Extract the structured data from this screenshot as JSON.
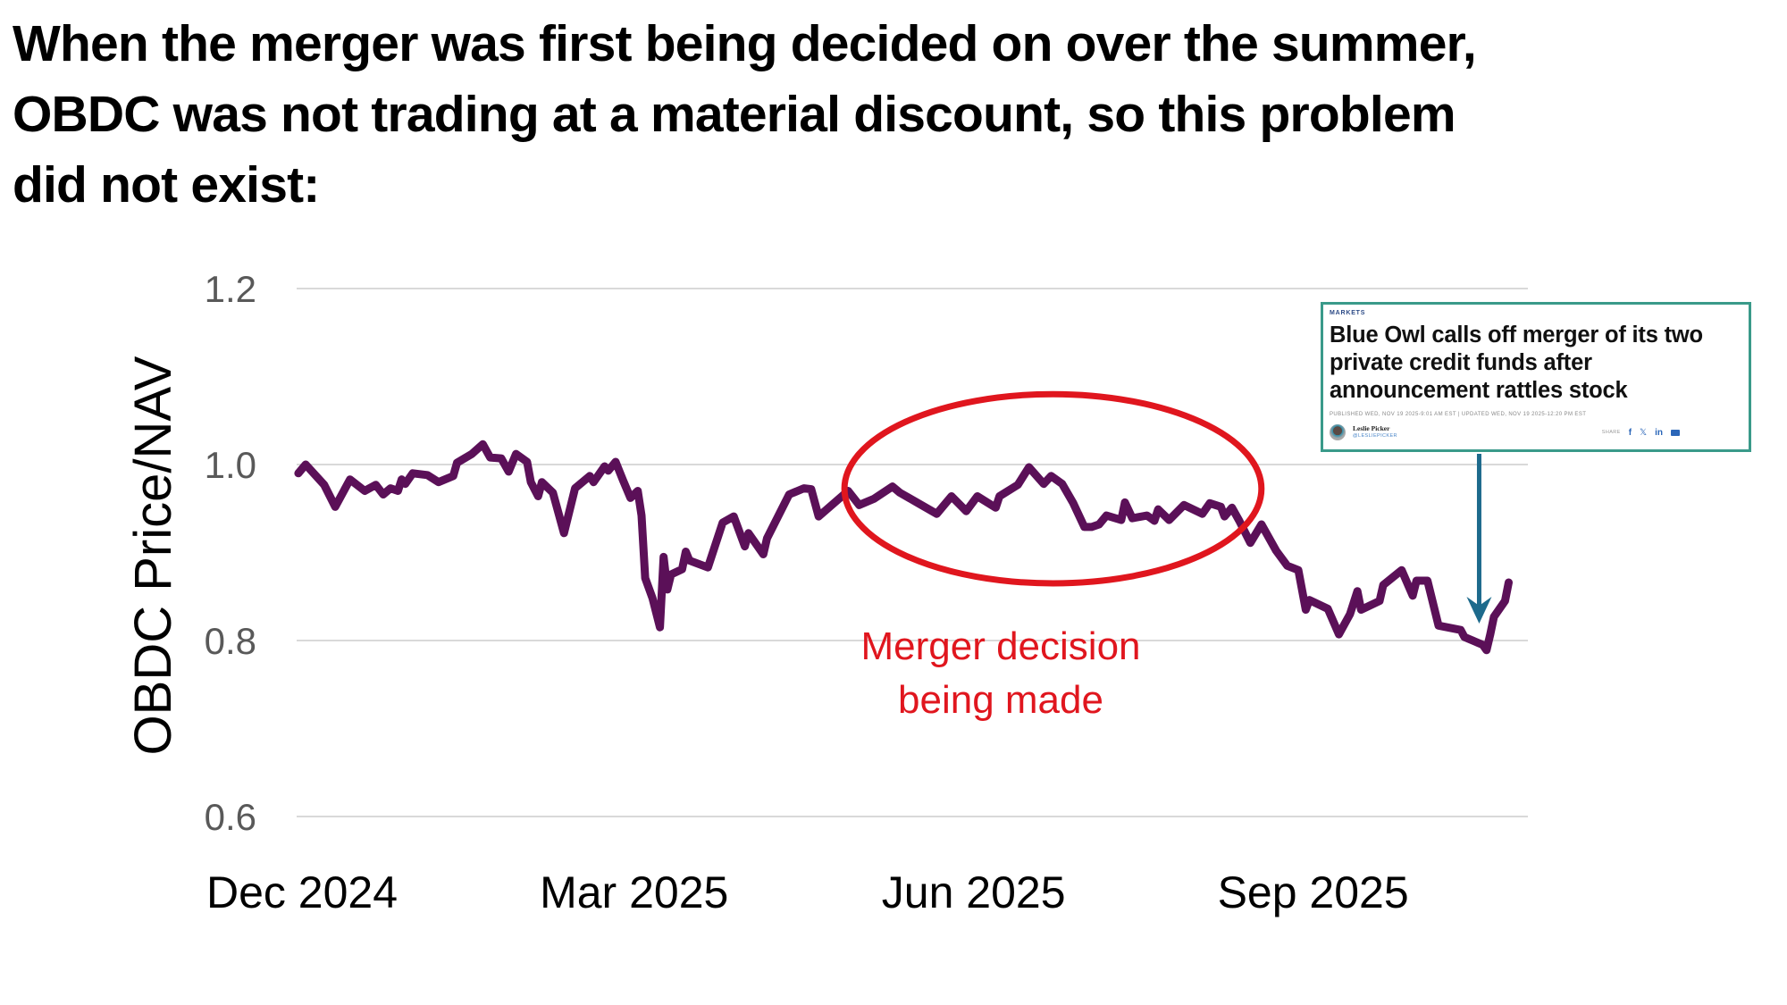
{
  "headline": {
    "lines": [
      "When the merger was first being decided on over the summer,",
      "OBDC was not trading at a material discount, so this problem",
      "did not exist:"
    ]
  },
  "colors": {
    "series": "#5b1058",
    "gridline": "#d9d9d9",
    "annotation": "#e0161e",
    "arrow": "#1d6a8c",
    "card_border": "#3a9a8a"
  },
  "chart_data": {
    "type": "line",
    "title": "",
    "xlabel": "",
    "ylabel": "OBDC Price/NAV",
    "x_units": "days since the Dec 2024 tick",
    "xlim": [
      -2,
      333
    ],
    "ylim": [
      0.6,
      1.2
    ],
    "grid": true,
    "y_ticks": [
      {
        "value": 1.2,
        "label": "1.2"
      },
      {
        "value": 1.0,
        "label": "1.0"
      },
      {
        "value": 0.8,
        "label": "0.8"
      },
      {
        "value": 0.6,
        "label": "0.6"
      }
    ],
    "x_ticks": [
      {
        "value": 0,
        "label": "Dec 2024"
      },
      {
        "value": 90,
        "label": "Mar 2025"
      },
      {
        "value": 182,
        "label": "Jun 2025"
      },
      {
        "value": 274,
        "label": "Sep 2025"
      }
    ],
    "series": [
      {
        "name": "OBDC Price/NAV",
        "points": [
          [
            -1,
            0.99
          ],
          [
            1,
            1.0
          ],
          [
            6,
            0.977
          ],
          [
            9,
            0.952
          ],
          [
            13,
            0.983
          ],
          [
            17,
            0.97
          ],
          [
            20,
            0.977
          ],
          [
            22,
            0.966
          ],
          [
            24,
            0.973
          ],
          [
            26,
            0.97
          ],
          [
            27,
            0.983
          ],
          [
            28,
            0.978
          ],
          [
            30,
            0.99
          ],
          [
            34,
            0.988
          ],
          [
            37,
            0.98
          ],
          [
            41,
            0.987
          ],
          [
            42,
            1.002
          ],
          [
            46,
            1.012
          ],
          [
            49,
            1.023
          ],
          [
            51,
            1.008
          ],
          [
            54,
            1.007
          ],
          [
            56,
            0.992
          ],
          [
            58,
            1.012
          ],
          [
            61,
            1.003
          ],
          [
            62,
            0.98
          ],
          [
            64,
            0.964
          ],
          [
            65,
            0.98
          ],
          [
            68,
            0.968
          ],
          [
            71,
            0.922
          ],
          [
            74,
            0.973
          ],
          [
            78,
            0.987
          ],
          [
            79,
            0.98
          ],
          [
            82,
            0.998
          ],
          [
            83,
            0.993
          ],
          [
            85,
            1.003
          ],
          [
            87,
            0.982
          ],
          [
            89,
            0.962
          ],
          [
            91,
            0.97
          ],
          [
            92,
            0.942
          ],
          [
            93,
            0.871
          ],
          [
            95,
            0.848
          ],
          [
            97,
            0.815
          ],
          [
            98,
            0.895
          ],
          [
            99,
            0.858
          ],
          [
            100,
            0.875
          ],
          [
            103,
            0.881
          ],
          [
            104,
            0.901
          ],
          [
            105,
            0.891
          ],
          [
            110,
            0.883
          ],
          [
            114,
            0.934
          ],
          [
            117,
            0.941
          ],
          [
            120,
            0.907
          ],
          [
            121,
            0.922
          ],
          [
            125,
            0.898
          ],
          [
            126,
            0.916
          ],
          [
            132,
            0.966
          ],
          [
            136,
            0.973
          ],
          [
            138,
            0.972
          ],
          [
            140,
            0.941
          ],
          [
            148,
            0.97
          ],
          [
            151,
            0.954
          ],
          [
            155,
            0.961
          ],
          [
            160,
            0.975
          ],
          [
            162,
            0.968
          ],
          [
            167,
            0.956
          ],
          [
            172,
            0.944
          ],
          [
            176,
            0.964
          ],
          [
            180,
            0.947
          ],
          [
            183,
            0.964
          ],
          [
            188,
            0.951
          ],
          [
            189,
            0.964
          ],
          [
            194,
            0.977
          ],
          [
            197,
            0.997
          ],
          [
            201,
            0.978
          ],
          [
            203,
            0.987
          ],
          [
            206,
            0.978
          ],
          [
            209,
            0.956
          ],
          [
            212,
            0.929
          ],
          [
            214,
            0.929
          ],
          [
            216,
            0.932
          ],
          [
            218,
            0.942
          ],
          [
            222,
            0.937
          ],
          [
            223,
            0.957
          ],
          [
            225,
            0.939
          ],
          [
            229,
            0.942
          ],
          [
            231,
            0.936
          ],
          [
            232,
            0.949
          ],
          [
            235,
            0.937
          ],
          [
            239,
            0.954
          ],
          [
            244,
            0.944
          ],
          [
            246,
            0.956
          ],
          [
            249,
            0.952
          ],
          [
            250,
            0.941
          ],
          [
            252,
            0.951
          ],
          [
            254,
            0.936
          ],
          [
            257,
            0.911
          ],
          [
            260,
            0.932
          ],
          [
            264,
            0.902
          ],
          [
            267,
            0.885
          ],
          [
            270,
            0.88
          ],
          [
            272,
            0.835
          ],
          [
            273,
            0.846
          ],
          [
            278,
            0.836
          ],
          [
            281,
            0.807
          ],
          [
            284,
            0.83
          ],
          [
            286,
            0.856
          ],
          [
            287,
            0.835
          ],
          [
            292,
            0.845
          ],
          [
            293,
            0.863
          ],
          [
            298,
            0.88
          ],
          [
            301,
            0.851
          ],
          [
            302,
            0.868
          ],
          [
            305,
            0.868
          ],
          [
            308,
            0.817
          ],
          [
            314,
            0.812
          ],
          [
            315,
            0.804
          ],
          [
            320,
            0.795
          ],
          [
            321,
            0.789
          ],
          [
            322,
            0.807
          ],
          [
            323,
            0.827
          ],
          [
            326,
            0.845
          ],
          [
            327,
            0.866
          ]
        ]
      }
    ],
    "annotations": [
      {
        "type": "ellipse",
        "label_lines": [
          "Merger decision",
          "being made"
        ],
        "x_range": [
          147,
          260
        ],
        "y_range": [
          0.865,
          1.08
        ]
      },
      {
        "type": "arrow",
        "x": 319,
        "from_y": 1.02,
        "to_y": 0.83,
        "target": "news-card"
      }
    ]
  },
  "news_card": {
    "kicker": "MARKETS",
    "title": "Blue Owl calls off merger of its two private credit funds after announcement rattles stock",
    "meta": "PUBLISHED WED, NOV 19 2025-9:01 AM EST | UPDATED WED, NOV 19 2025-12:20 PM EST",
    "author": "Leslie Picker",
    "handle": "@LESLIEPICKER",
    "share_label": "SHARE",
    "share_icons": [
      "facebook-icon",
      "x-icon",
      "linkedin-icon",
      "mail-icon"
    ],
    "share_glyphs": {
      "facebook": "f",
      "x": "𝕏",
      "linkedin": "in"
    }
  }
}
